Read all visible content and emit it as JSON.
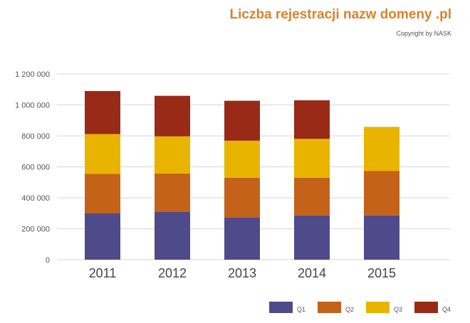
{
  "chart_data": {
    "type": "bar",
    "stacked": true,
    "title": "Liczba rejestracji nazw domeny .pl",
    "subtitle": "Copyright by NASK",
    "xlabel": "",
    "ylabel": "",
    "categories": [
      "2011",
      "2012",
      "2013",
      "2014",
      "2015"
    ],
    "ylim": [
      0,
      1200000
    ],
    "yticks": [
      0,
      200000,
      400000,
      600000,
      800000,
      1000000,
      1200000
    ],
    "ytick_labels": [
      "0",
      "200 000",
      "400 000",
      "600 000",
      "800 000",
      "1 000 000",
      "1 200 000"
    ],
    "grid": true,
    "legend": "bottom-right",
    "series": [
      {
        "name": "Q1",
        "color": "#4f4a8a",
        "values": [
          299000,
          308000,
          273000,
          286000,
          286000
        ]
      },
      {
        "name": "Q2",
        "color": "#c46219",
        "values": [
          255000,
          249000,
          257000,
          244000,
          288000
        ]
      },
      {
        "name": "Q3",
        "color": "#e8b400",
        "values": [
          258000,
          240000,
          239000,
          251000,
          284000
        ]
      },
      {
        "name": "Q4",
        "color": "#982a17",
        "values": [
          278000,
          262000,
          258000,
          249000,
          0
        ]
      }
    ]
  }
}
